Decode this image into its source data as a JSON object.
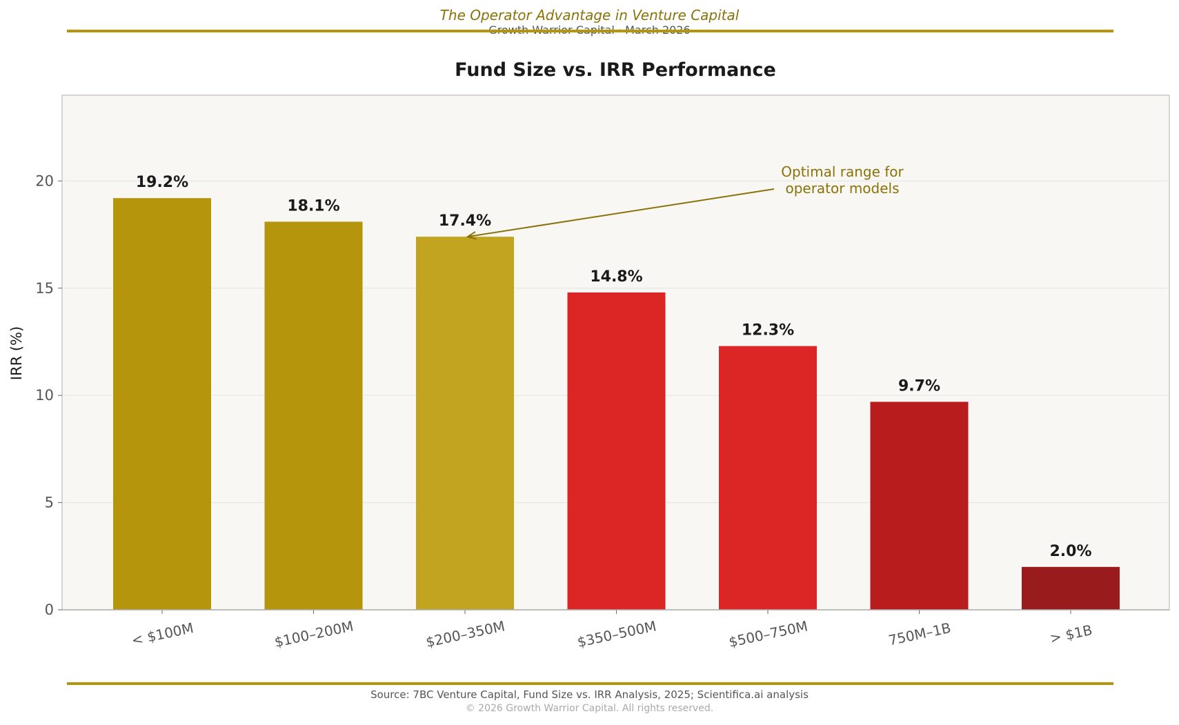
{
  "header": {
    "title": "The Operator Advantage in Venture Capital",
    "subtitle": "Growth Warrior Capital  ·  March 2026"
  },
  "footer": {
    "source": "Source: 7BC Venture Capital, Fund Size vs. IRR Analysis, 2025; Scientifica.ai analysis",
    "copyright": "© 2026 Growth Warrior Capital. All rights reserved."
  },
  "colors": {
    "accent": "#b5950b",
    "plot_background": "#f8f7f3"
  },
  "chart_data": {
    "type": "bar",
    "title": "Fund Size vs. IRR Performance",
    "xlabel": "",
    "ylabel": "IRR (%)",
    "ylim": [
      0,
      24
    ],
    "yticks": [
      0,
      5,
      10,
      15,
      20
    ],
    "grid": true,
    "categories": [
      "< $100M",
      "$100–200M",
      "$200–350M",
      "$350–500M",
      "$500–750M",
      "750M–1B",
      "> $1B"
    ],
    "values": [
      19.2,
      18.1,
      17.4,
      14.8,
      12.3,
      9.7,
      2.0
    ],
    "data_labels": [
      "19.2%",
      "18.1%",
      "17.4%",
      "14.8%",
      "12.3%",
      "9.7%",
      "2.0%"
    ],
    "bar_colors": [
      "#b5950b",
      "#b5950b",
      "#c2a420",
      "#dc2626",
      "#dc2626",
      "#b91c1c",
      "#991b1b"
    ],
    "annotation": {
      "text_lines": [
        "Optimal range for",
        "operator models"
      ],
      "target_category": "$200–350M",
      "target_value": 17.4,
      "color": "#8a7208"
    }
  }
}
